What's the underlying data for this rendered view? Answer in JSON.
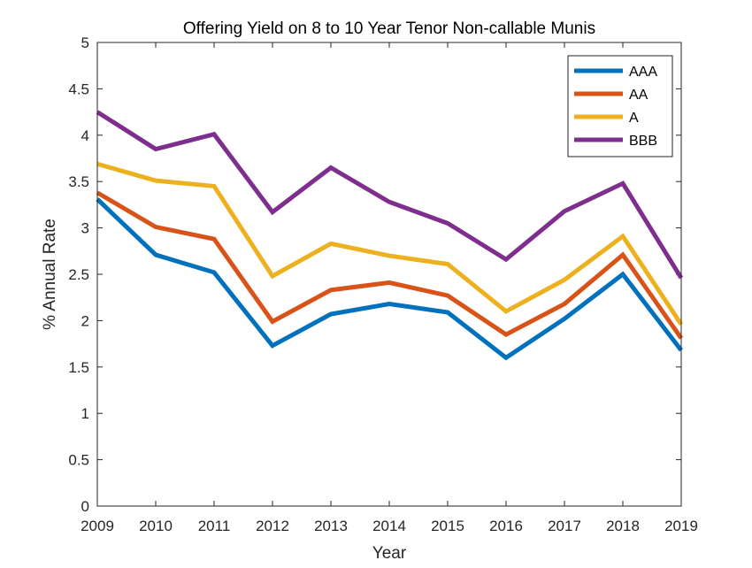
{
  "chart_data": {
    "type": "line",
    "title": "Offering Yield on 8 to 10 Year Tenor Non-callable Munis",
    "xlabel": "Year",
    "ylabel": "% Annual Rate",
    "x": [
      2009,
      2010,
      2011,
      2012,
      2013,
      2014,
      2015,
      2016,
      2017,
      2018,
      2019
    ],
    "xlim": [
      2009,
      2019
    ],
    "ylim": [
      0,
      5
    ],
    "yticks": [
      0,
      0.5,
      1,
      1.5,
      2,
      2.5,
      3,
      3.5,
      4,
      4.5,
      5
    ],
    "ytick_labels": [
      "0",
      "0.5",
      "1",
      "1.5",
      "2",
      "2.5",
      "3",
      "3.5",
      "4",
      "4.5",
      "5"
    ],
    "xtick_labels": [
      "2009",
      "2010",
      "2011",
      "2012",
      "2013",
      "2014",
      "2015",
      "2016",
      "2017",
      "2018",
      "2019"
    ],
    "grid": false,
    "legend_position": "top-right",
    "series": [
      {
        "name": "AAA",
        "color": "#0072BD",
        "values": [
          3.31,
          2.71,
          2.52,
          1.73,
          2.07,
          2.18,
          2.09,
          1.6,
          2.02,
          2.5,
          1.68
        ]
      },
      {
        "name": "AA",
        "color": "#D95319",
        "values": [
          3.38,
          3.01,
          2.88,
          1.99,
          2.33,
          2.41,
          2.27,
          1.85,
          2.18,
          2.71,
          1.81
        ]
      },
      {
        "name": "A",
        "color": "#EDB120",
        "values": [
          3.69,
          3.51,
          3.45,
          2.48,
          2.83,
          2.7,
          2.61,
          2.1,
          2.44,
          2.91,
          1.96
        ]
      },
      {
        "name": "BBB",
        "color": "#7E2F8E",
        "values": [
          4.25,
          3.85,
          4.01,
          3.17,
          3.65,
          3.28,
          3.05,
          2.66,
          3.18,
          3.48,
          2.46
        ]
      }
    ]
  }
}
